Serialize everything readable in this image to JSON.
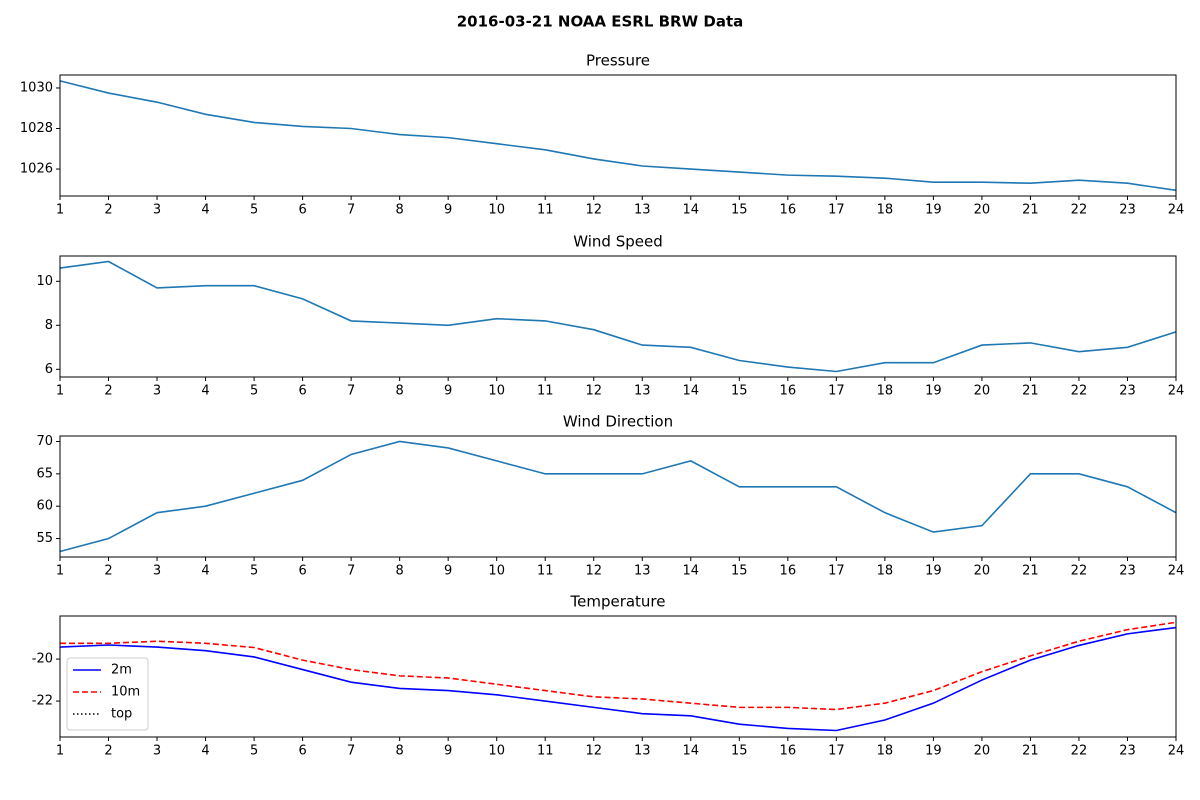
{
  "title": "2016-03-21 NOAA ESRL BRW Data",
  "chart_data": [
    {
      "type": "line",
      "title": "Pressure",
      "x": [
        1,
        2,
        3,
        4,
        5,
        6,
        7,
        8,
        9,
        10,
        11,
        12,
        13,
        14,
        15,
        16,
        17,
        18,
        19,
        20,
        21,
        22,
        23,
        24
      ],
      "series": [
        {
          "color": "#1f77b4",
          "linestyle": "solid",
          "values": [
            1030.35,
            1029.75,
            1029.3,
            1028.7,
            1028.3,
            1028.1,
            1028.0,
            1027.7,
            1027.55,
            1027.25,
            1026.95,
            1026.5,
            1026.15,
            1026.0,
            1025.85,
            1025.7,
            1025.65,
            1025.55,
            1025.35,
            1025.35,
            1025.3,
            1025.45,
            1025.3,
            1024.95
          ]
        }
      ],
      "xlim": [
        1,
        24
      ],
      "xticks": [
        1,
        2,
        3,
        4,
        5,
        6,
        7,
        8,
        9,
        10,
        11,
        12,
        13,
        14,
        15,
        16,
        17,
        18,
        19,
        20,
        21,
        22,
        23,
        24
      ],
      "ylim": [
        1024.67,
        1030.64
      ],
      "yticks": [
        1026,
        1028,
        1030
      ]
    },
    {
      "type": "line",
      "title": "Wind Speed",
      "x": [
        1,
        2,
        3,
        4,
        5,
        6,
        7,
        8,
        9,
        10,
        11,
        12,
        13,
        14,
        15,
        16,
        17,
        18,
        19,
        20,
        21,
        22,
        23,
        24
      ],
      "series": [
        {
          "color": "#1f77b4",
          "linestyle": "solid",
          "values": [
            10.6,
            10.9,
            9.7,
            9.8,
            9.8,
            9.2,
            8.2,
            8.1,
            8.0,
            8.3,
            8.2,
            7.8,
            7.1,
            7.0,
            6.4,
            6.1,
            5.9,
            6.3,
            6.3,
            7.1,
            7.2,
            6.8,
            7.0,
            7.7
          ]
        }
      ],
      "xlim": [
        1,
        24
      ],
      "xticks": [
        1,
        2,
        3,
        4,
        5,
        6,
        7,
        8,
        9,
        10,
        11,
        12,
        13,
        14,
        15,
        16,
        17,
        18,
        19,
        20,
        21,
        22,
        23,
        24
      ],
      "ylim": [
        5.65,
        11.15
      ],
      "yticks": [
        6,
        8,
        10
      ]
    },
    {
      "type": "line",
      "title": "Wind Direction",
      "x": [
        1,
        2,
        3,
        4,
        5,
        6,
        7,
        8,
        9,
        10,
        11,
        12,
        13,
        14,
        15,
        16,
        17,
        18,
        19,
        20,
        21,
        22,
        23,
        24
      ],
      "series": [
        {
          "color": "#1f77b4",
          "linestyle": "solid",
          "values": [
            53,
            55,
            59,
            60,
            62,
            64,
            68,
            70,
            69,
            67,
            65,
            65,
            65,
            67,
            63,
            63,
            63,
            59,
            56,
            57,
            65,
            65,
            63,
            59
          ]
        }
      ],
      "xlim": [
        1,
        24
      ],
      "xticks": [
        1,
        2,
        3,
        4,
        5,
        6,
        7,
        8,
        9,
        10,
        11,
        12,
        13,
        14,
        15,
        16,
        17,
        18,
        19,
        20,
        21,
        22,
        23,
        24
      ],
      "ylim": [
        52.15,
        70.85
      ],
      "yticks": [
        55,
        60,
        65,
        70
      ]
    },
    {
      "type": "line",
      "title": "Temperature",
      "x": [
        1,
        2,
        3,
        4,
        5,
        6,
        7,
        8,
        9,
        10,
        11,
        12,
        13,
        14,
        15,
        16,
        17,
        18,
        19,
        20,
        21,
        22,
        23,
        24
      ],
      "series": [
        {
          "name": "2m",
          "color": "blue",
          "linestyle": "solid",
          "values": [
            -19.43,
            -19.33,
            -19.43,
            -19.6,
            -19.9,
            -20.5,
            -21.1,
            -21.4,
            -21.5,
            -21.7,
            -22.0,
            -22.3,
            -22.6,
            -22.7,
            -23.1,
            -23.3,
            -23.4,
            -22.9,
            -22.1,
            -21.0,
            -20.05,
            -19.35,
            -18.8,
            -18.5
          ]
        },
        {
          "name": "10m",
          "color": "red",
          "linestyle": "dashed",
          "values": [
            -19.25,
            -19.25,
            -19.15,
            -19.25,
            -19.45,
            -20.05,
            -20.5,
            -20.8,
            -20.9,
            -21.2,
            -21.5,
            -21.8,
            -21.9,
            -22.1,
            -22.3,
            -22.3,
            -22.4,
            -22.1,
            -21.5,
            -20.6,
            -19.85,
            -19.15,
            -18.6,
            -18.25
          ]
        },
        {
          "name": "top",
          "color": "black",
          "linestyle": "dotted",
          "values": [
            null,
            null,
            null,
            null,
            null,
            null,
            null,
            null,
            null,
            null,
            null,
            null,
            null,
            null,
            null,
            null,
            null,
            null,
            null,
            null,
            null,
            null,
            null,
            null
          ]
        }
      ],
      "xlim": [
        1,
        24
      ],
      "xticks": [
        1,
        2,
        3,
        4,
        5,
        6,
        7,
        8,
        9,
        10,
        11,
        12,
        13,
        14,
        15,
        16,
        17,
        18,
        19,
        20,
        21,
        22,
        23,
        24
      ],
      "ylim": [
        -23.71,
        -17.95
      ],
      "yticks": [
        -22,
        -20
      ],
      "legend": "lower left"
    }
  ]
}
